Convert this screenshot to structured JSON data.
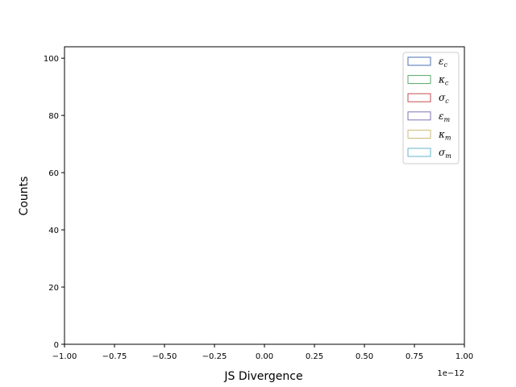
{
  "chart_data": {
    "type": "bar",
    "xlabel": "JS Divergence",
    "ylabel": "Counts",
    "x_offset_label": "1e−12",
    "xlim": [
      -1.0,
      1.0
    ],
    "ylim": [
      0,
      104
    ],
    "x_ticks": [
      -1.0,
      -0.75,
      -0.5,
      -0.25,
      0.0,
      0.25,
      0.5,
      0.75,
      1.0
    ],
    "x_tick_labels": [
      "−1.00",
      "−0.75",
      "−0.50",
      "−0.25",
      "0.00",
      "0.25",
      "0.50",
      "0.75",
      "1.00"
    ],
    "y_ticks": [
      0,
      20,
      40,
      60,
      80,
      100
    ],
    "y_tick_labels": [
      "0",
      "20",
      "40",
      "60",
      "80",
      "100"
    ],
    "grid": false,
    "legend_position": "top-right",
    "series": [
      {
        "name": "ε",
        "sub": "c",
        "color": "#4c72b0",
        "values": []
      },
      {
        "name": "κ",
        "sub": "c",
        "color": "#55a868",
        "values": []
      },
      {
        "name": "σ",
        "sub": "c",
        "color": "#c44e52",
        "values": []
      },
      {
        "name": "ε",
        "sub": "m",
        "color": "#8172b2",
        "values": []
      },
      {
        "name": "κ",
        "sub": "m",
        "color": "#ccb974",
        "values": []
      },
      {
        "name": "σ",
        "sub": "m",
        "color": "#64b5cd",
        "values": []
      }
    ]
  }
}
